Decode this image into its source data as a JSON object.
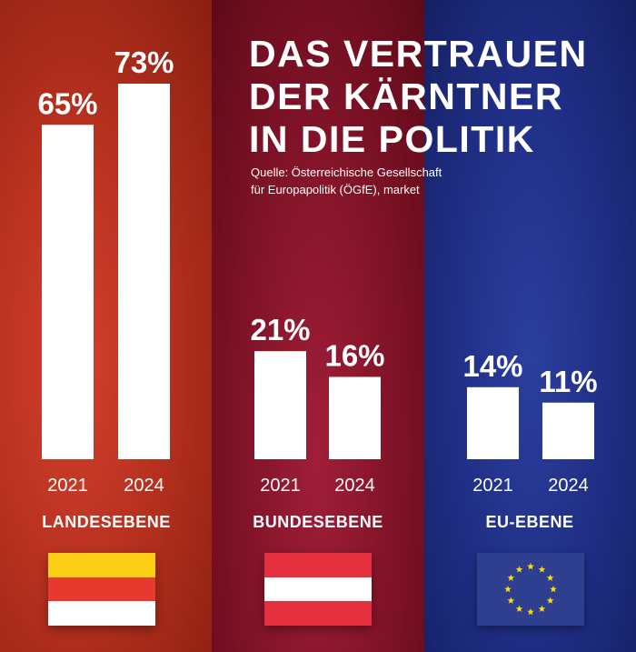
{
  "title": [
    "DAS VERTRAUEN",
    "DER KÄRNTNER",
    "IN DIE POLITIK"
  ],
  "source": [
    "Quelle: Österreichische Gesellschaft",
    "für Europapolitik (ÖGfE), market"
  ],
  "chart_data": {
    "type": "bar",
    "title": "DAS VERTRAUEN DER KÄRNTNER IN DIE POLITIK",
    "ylim": [
      0,
      100
    ],
    "unit": "%",
    "groups": [
      {
        "label": "LANDESEBENE",
        "categories": [
          "2021",
          "2024"
        ],
        "values": [
          65,
          73
        ],
        "value_labels": [
          "65%",
          "73%"
        ]
      },
      {
        "label": "BUNDESEBENE",
        "categories": [
          "2021",
          "2024"
        ],
        "values": [
          21,
          16
        ],
        "value_labels": [
          "21%",
          "16%"
        ]
      },
      {
        "label": "EU-EBENE",
        "categories": [
          "2021",
          "2024"
        ],
        "values": [
          14,
          11
        ],
        "value_labels": [
          "14%",
          "11%"
        ]
      }
    ]
  },
  "flags": [
    {
      "icon": "carinthia-flag-icon",
      "stripes": [
        "#fdd017",
        "#e8392e",
        "#ffffff"
      ]
    },
    {
      "icon": "austria-flag-icon",
      "stripes": [
        "#e3303c",
        "#ffffff",
        "#e3303c"
      ]
    },
    {
      "icon": "eu-flag-icon",
      "background": "#2f3f8f",
      "star_color": "#ffdd00"
    }
  ],
  "colors": {
    "landes": "#c23a26",
    "bundes": "#8d1830",
    "eu": "#22348a",
    "bar": "#ffffff",
    "text": "#ffffff"
  }
}
